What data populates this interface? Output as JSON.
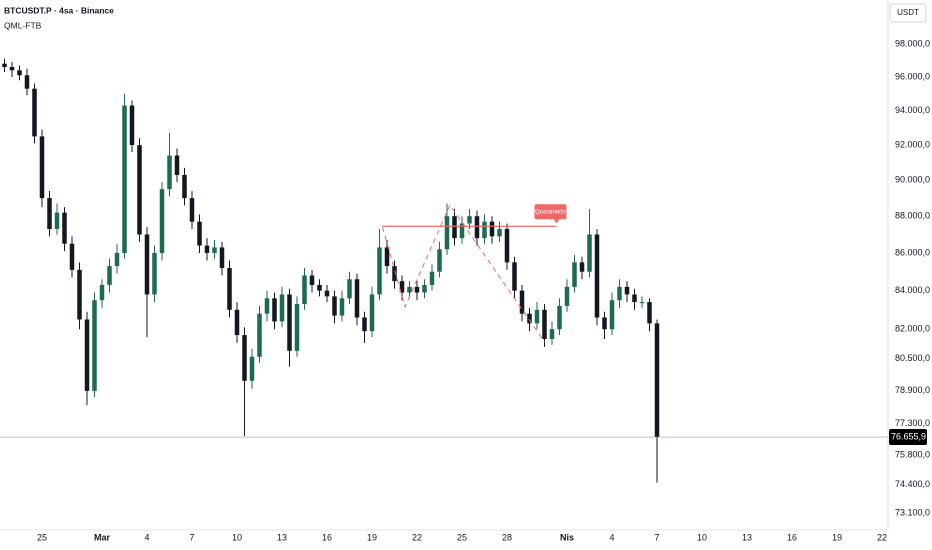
{
  "chart_data": {
    "type": "candlestick",
    "title": "BTCUSDT.P · 4sa · Binance",
    "subtitle": "QML-FTB",
    "currency": "USDT",
    "log_scale": true,
    "grid": false,
    "up_color": "#1e6b52",
    "down_color": "#131722",
    "xlim": [
      -2.8,
      56.4
    ],
    "ylim": [
      72330,
      100730
    ],
    "xticks": [
      {
        "value": 0,
        "label": "25"
      },
      {
        "value": 4,
        "label": "Mar"
      },
      {
        "value": 7,
        "label": "4"
      },
      {
        "value": 10,
        "label": "7"
      },
      {
        "value": 13,
        "label": "10"
      },
      {
        "value": 16,
        "label": "13"
      },
      {
        "value": 19,
        "label": "16"
      },
      {
        "value": 22,
        "label": "19"
      },
      {
        "value": 25,
        "label": "22"
      },
      {
        "value": 28,
        "label": "25"
      },
      {
        "value": 31,
        "label": "28"
      },
      {
        "value": 35,
        "label": "Nis"
      },
      {
        "value": 38,
        "label": "4"
      },
      {
        "value": 41,
        "label": "7"
      },
      {
        "value": 44,
        "label": "10"
      },
      {
        "value": 47,
        "label": "13"
      },
      {
        "value": 50,
        "label": "16"
      },
      {
        "value": 53,
        "label": "19"
      },
      {
        "value": 56,
        "label": "22"
      }
    ],
    "yticks": [
      {
        "value": 98000,
        "label": "98.000,0"
      },
      {
        "value": 96000,
        "label": "96.000,0"
      },
      {
        "value": 94000,
        "label": "94.000,0"
      },
      {
        "value": 92000,
        "label": "92.000,0"
      },
      {
        "value": 90000,
        "label": "90.000,0"
      },
      {
        "value": 88000,
        "label": "88.000,0"
      },
      {
        "value": 86000,
        "label": "86.000,0"
      },
      {
        "value": 84000,
        "label": "84.000,0"
      },
      {
        "value": 82000,
        "label": "82.000,0"
      },
      {
        "value": 80500,
        "label": "80.500,0"
      },
      {
        "value": 78900,
        "label": "78.900,0"
      },
      {
        "value": 77300,
        "label": "77.300,0"
      },
      {
        "value": 75800,
        "label": "75.800,0"
      },
      {
        "value": 74400,
        "label": "74.400,0"
      },
      {
        "value": 73100,
        "label": "73.100,0"
      }
    ],
    "last_price": {
      "value": 76655.9,
      "label": "76.655,9",
      "color": "#000000"
    },
    "x": [
      -2.5,
      -2,
      -1.5,
      -1,
      -0.5,
      0,
      0.5,
      1,
      1.5,
      2,
      2.5,
      3,
      3.5,
      4,
      4.5,
      5,
      5.5,
      6,
      6.5,
      7,
      7.5,
      8,
      8.5,
      9,
      9.5,
      10,
      10.5,
      11,
      11.5,
      12,
      12.5,
      13,
      13.5,
      14,
      14.5,
      15,
      15.5,
      16,
      16.5,
      17,
      17.5,
      18,
      18.5,
      19,
      19.5,
      20,
      20.5,
      21,
      21.5,
      22,
      22.5,
      23,
      23.5,
      24,
      24.5,
      25,
      25.5,
      26,
      26.5,
      27,
      27.5,
      28,
      28.5,
      29,
      29.5,
      30,
      30.5,
      31,
      31.5,
      32,
      32.5,
      33,
      33.5,
      34,
      34.5,
      35,
      35.5,
      36,
      36.5,
      37,
      37.5,
      38,
      38.5,
      39,
      39.5,
      40,
      40.5,
      41
    ],
    "open": [
      96800,
      96600,
      96400,
      96100,
      95300,
      92500,
      89000,
      87300,
      88200,
      86500,
      85100,
      82500,
      78900,
      83500,
      84300,
      85300,
      86000,
      94300,
      92000,
      87000,
      83800,
      86000,
      89500,
      91400,
      90300,
      89000,
      87700,
      86400,
      86000,
      86300,
      85200,
      83000,
      81700,
      79400,
      80600,
      82800,
      83600,
      82400,
      83800,
      80900,
      83300,
      84800,
      84300,
      84000,
      83700,
      82700,
      83600,
      84600,
      82600,
      81900,
      83800,
      86300,
      85300,
      84500,
      83900,
      84200,
      83900,
      84300,
      85000,
      86200,
      88000,
      86800,
      87600,
      88000,
      86800,
      87700,
      86900,
      87300,
      85500,
      84000,
      82800,
      82300,
      83000,
      81500,
      82000,
      83200,
      84200,
      85500,
      85000,
      87000,
      82600,
      82000,
      83500,
      84200,
      83800,
      83400,
      83400,
      82300
    ],
    "high": [
      97100,
      96900,
      96700,
      96500,
      95600,
      92900,
      89400,
      88700,
      88500,
      86900,
      85500,
      82900,
      83900,
      84600,
      85700,
      86500,
      95000,
      94600,
      92400,
      87400,
      86400,
      89900,
      92700,
      91800,
      90700,
      89400,
      88100,
      86800,
      86700,
      86600,
      85600,
      83400,
      82100,
      81000,
      83200,
      84000,
      83900,
      84200,
      84100,
      83700,
      85200,
      85100,
      84600,
      84300,
      84000,
      84000,
      85000,
      84900,
      82900,
      84200,
      87300,
      86700,
      85600,
      84800,
      84500,
      84500,
      84600,
      85400,
      86600,
      88700,
      88400,
      88000,
      88400,
      88300,
      88100,
      88000,
      87700,
      87600,
      85800,
      84300,
      83100,
      83400,
      83300,
      82400,
      83600,
      84600,
      85900,
      85800,
      88400,
      87300,
      82900,
      83900,
      84600,
      84500,
      84100,
      83700,
      83600,
      82500
    ],
    "low": [
      96300,
      96000,
      95800,
      94900,
      92100,
      88500,
      86900,
      87000,
      86100,
      84700,
      82000,
      78200,
      78600,
      83100,
      83900,
      84900,
      85700,
      91600,
      86600,
      81600,
      83400,
      85600,
      89100,
      89900,
      88600,
      87300,
      86000,
      85600,
      85700,
      84800,
      82600,
      81300,
      76700,
      79000,
      80300,
      82400,
      82000,
      82100,
      80100,
      80600,
      83000,
      83900,
      83700,
      83400,
      82300,
      82400,
      83300,
      82200,
      81300,
      81600,
      83500,
      84900,
      84100,
      83500,
      83600,
      83500,
      83600,
      84000,
      84700,
      85900,
      86400,
      86500,
      87300,
      86400,
      86500,
      86500,
      86600,
      85100,
      83600,
      82400,
      81900,
      82000,
      81100,
      81200,
      81700,
      82900,
      83900,
      84600,
      84700,
      82200,
      81500,
      81700,
      83100,
      83400,
      83000,
      83100,
      81900,
      74500
    ],
    "close": [
      96600,
      96400,
      96100,
      95300,
      92500,
      89000,
      87300,
      88200,
      86500,
      85100,
      82500,
      78900,
      83500,
      84300,
      85300,
      86000,
      94300,
      92000,
      87000,
      83800,
      86000,
      89500,
      91400,
      90300,
      89000,
      87700,
      86400,
      86000,
      86300,
      85200,
      83000,
      81700,
      79400,
      80600,
      82800,
      83600,
      82400,
      83800,
      80900,
      83300,
      84800,
      84300,
      84000,
      83700,
      82700,
      83600,
      84600,
      82600,
      81900,
      83800,
      86300,
      85300,
      84500,
      83900,
      84200,
      83900,
      84300,
      85000,
      86200,
      88000,
      86800,
      87600,
      88000,
      86800,
      87700,
      86900,
      87300,
      85500,
      84000,
      82800,
      82300,
      83000,
      81500,
      82000,
      83200,
      84200,
      85500,
      85000,
      87000,
      82600,
      82000,
      83500,
      84200,
      83800,
      83400,
      83400,
      82300,
      76655.9
    ],
    "pattern": {
      "label": "Quasimodo",
      "color": "#f06767",
      "line": {
        "x": [
          22.7,
          34.3
        ],
        "y": [
          87450,
          87450
        ]
      },
      "zigzag": {
        "x": [
          22.7,
          24.2,
          27.2,
          33.5
        ],
        "y": [
          87400,
          83150,
          88620,
          81350
        ]
      }
    }
  }
}
